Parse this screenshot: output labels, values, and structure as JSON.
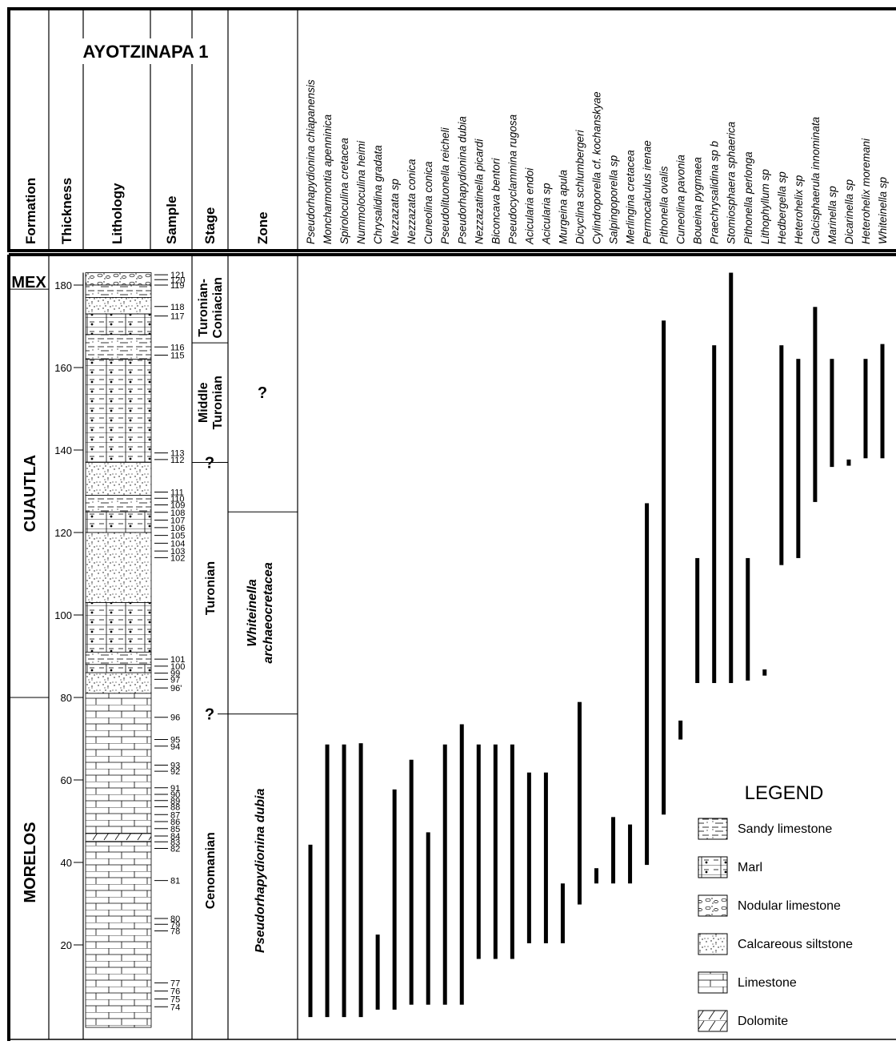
{
  "title": "AYOTZINAPA 1",
  "columns": {
    "formation": "Formation",
    "thickness": "Thickness",
    "lithology": "Lithology",
    "sample": "Sample",
    "stage": "Stage",
    "zone": "Zone"
  },
  "formations": [
    {
      "name": "MEX",
      "from": 179,
      "to": 183
    },
    {
      "name": "CUAUTLA",
      "from": 80,
      "to": 179
    },
    {
      "name": "MORELOS",
      "from": 0,
      "to": 80
    }
  ],
  "stages": [
    {
      "name": "Turonian-Coniacian",
      "lines": [
        "Turonian-",
        "Coniacian"
      ],
      "from": 166,
      "to": 183
    },
    {
      "name": "Middle Turonian",
      "lines": [
        "Middle",
        "Turonian"
      ],
      "from": 137,
      "to": 166
    },
    {
      "name": "Turonian",
      "lines": [
        "Turonian"
      ],
      "from": 76,
      "to": 137
    },
    {
      "name": "Cenomanian",
      "lines": [
        "Cenomanian"
      ],
      "from": 0,
      "to": 76
    }
  ],
  "stage_uncertain_marks": [
    {
      "label": "?",
      "depth": 137
    },
    {
      "label": "?",
      "depth": 76
    }
  ],
  "zones": [
    {
      "name": "?",
      "lines": [
        "?"
      ],
      "italic": false,
      "from": 125,
      "to": 183
    },
    {
      "name": "Whiteinella archaeocretacea",
      "lines": [
        "Whiteinella",
        "archaeocretacea"
      ],
      "italic": true,
      "from": 76,
      "to": 125
    },
    {
      "name": "Pseudorhapydionina dubia",
      "lines": [
        "Pseudorhapydionina dubia"
      ],
      "italic": true,
      "from": 0,
      "to": 76
    }
  ],
  "samples": [
    {
      "label": "121",
      "depth": 182.5
    },
    {
      "label": "120",
      "depth": 181.3
    },
    {
      "label": "119",
      "depth": 180.0
    },
    {
      "label": "118",
      "depth": 174.8
    },
    {
      "label": "117",
      "depth": 172.5
    },
    {
      "label": "116",
      "depth": 165.0
    },
    {
      "label": "115",
      "depth": 163.0
    },
    {
      "label": "113",
      "depth": 139.3
    },
    {
      "label": "112",
      "depth": 137.7
    },
    {
      "label": "111",
      "depth": 129.8
    },
    {
      "label": "110",
      "depth": 128.3
    },
    {
      "label": "109",
      "depth": 126.7
    },
    {
      "label": "108",
      "depth": 124.9
    },
    {
      "label": "107",
      "depth": 123.0
    },
    {
      "label": "106",
      "depth": 121.2
    },
    {
      "label": "105",
      "depth": 119.3
    },
    {
      "label": "104",
      "depth": 117.4
    },
    {
      "label": "103",
      "depth": 115.5
    },
    {
      "label": "102",
      "depth": 113.9
    },
    {
      "label": "101",
      "depth": 89.3
    },
    {
      "label": "100",
      "depth": 87.6
    },
    {
      "label": "99",
      "depth": 85.9
    },
    {
      "label": "97",
      "depth": 84.4
    },
    {
      "label": "96'",
      "depth": 82.3
    },
    {
      "label": "96",
      "depth": 75.2
    },
    {
      "label": "95",
      "depth": 69.8
    },
    {
      "label": "94",
      "depth": 68.2
    },
    {
      "label": "93",
      "depth": 63.6
    },
    {
      "label": "92",
      "depth": 62.1
    },
    {
      "label": "91",
      "depth": 58.1
    },
    {
      "label": "90",
      "depth": 56.5
    },
    {
      "label": "89",
      "depth": 55.0
    },
    {
      "label": "88",
      "depth": 53.5
    },
    {
      "label": "87",
      "depth": 51.6
    },
    {
      "label": "86",
      "depth": 49.9
    },
    {
      "label": "85",
      "depth": 48.2
    },
    {
      "label": "84",
      "depth": 46.4
    },
    {
      "label": "83",
      "depth": 45.0
    },
    {
      "label": "82",
      "depth": 43.4
    },
    {
      "label": "81",
      "depth": 35.6
    },
    {
      "label": "80",
      "depth": 26.4
    },
    {
      "label": "79",
      "depth": 25.0
    },
    {
      "label": "78",
      "depth": 23.4
    },
    {
      "label": "77",
      "depth": 10.8
    },
    {
      "label": "76",
      "depth": 8.8
    },
    {
      "label": "75",
      "depth": 6.9
    },
    {
      "label": "74",
      "depth": 5.0
    }
  ],
  "lithology": [
    {
      "type": "nodular",
      "from": 180,
      "to": 183
    },
    {
      "type": "sandy",
      "from": 177,
      "to": 180
    },
    {
      "type": "siltstone",
      "from": 173,
      "to": 177
    },
    {
      "type": "marl",
      "from": 168,
      "to": 173
    },
    {
      "type": "sandy",
      "from": 162,
      "to": 168
    },
    {
      "type": "marl",
      "from": 137,
      "to": 162
    },
    {
      "type": "siltstone",
      "from": 129,
      "to": 137
    },
    {
      "type": "sandy",
      "from": 125,
      "to": 129
    },
    {
      "type": "marl",
      "from": 120,
      "to": 125
    },
    {
      "type": "siltstone",
      "from": 103,
      "to": 120
    },
    {
      "type": "marl",
      "from": 91,
      "to": 103
    },
    {
      "type": "sandy",
      "from": 88,
      "to": 91
    },
    {
      "type": "marl",
      "from": 86,
      "to": 88
    },
    {
      "type": "siltstone",
      "from": 81,
      "to": 86
    },
    {
      "type": "limestone",
      "from": 47,
      "to": 81
    },
    {
      "type": "dolomite",
      "from": 45,
      "to": 47
    },
    {
      "type": "limestone",
      "from": 0,
      "to": 45
    }
  ],
  "legend": {
    "title": "LEGEND",
    "items": [
      {
        "type": "sandy",
        "label": "Sandy limestone"
      },
      {
        "type": "marl",
        "label": "Marl"
      },
      {
        "type": "nodular",
        "label": "Nodular limestone"
      },
      {
        "type": "siltstone",
        "label": "Calcareous siltstone"
      },
      {
        "type": "limestone",
        "label": "Limestone"
      },
      {
        "type": "dolomite",
        "label": "Dolomite"
      }
    ]
  },
  "chart_data": {
    "type": "range-bar",
    "title": "AYOTZINAPA 1",
    "ylabel": "Thickness",
    "yunit": "m",
    "ylim": [
      0,
      183
    ],
    "yticks": [
      20,
      40,
      60,
      80,
      100,
      120,
      140,
      160,
      180
    ],
    "series": [
      {
        "name": "Pseudorhapydionina chiapanensis",
        "from": 2.5,
        "to": 44.3
      },
      {
        "name": "Moncharmontia apenninica",
        "from": 2.5,
        "to": 68.6
      },
      {
        "name": "Spiroloculina cretacea",
        "from": 2.5,
        "to": 68.6
      },
      {
        "name": "Nummoloculina heimi",
        "from": 2.5,
        "to": 68.9
      },
      {
        "name": "Chrysalidina gradata",
        "from": 4.3,
        "to": 22.5
      },
      {
        "name": "Nezzazata sp",
        "from": 4.3,
        "to": 57.7
      },
      {
        "name": "Nezzazata conica",
        "from": 5.5,
        "to": 64.9
      },
      {
        "name": "Cuneolina conica",
        "from": 5.5,
        "to": 47.3
      },
      {
        "name": "Pseudolituonella reicheli",
        "from": 5.5,
        "to": 68.6
      },
      {
        "name": "Pseudorhapydionina dubia",
        "from": 5.5,
        "to": 73.5
      },
      {
        "name": "Nezzazatinella picardi",
        "from": 16.6,
        "to": 68.6
      },
      {
        "name": "Biconcava bentori",
        "from": 16.6,
        "to": 68.6
      },
      {
        "name": "Pseudocyclammina rugosa",
        "from": 16.6,
        "to": 68.6
      },
      {
        "name": "Acicularia endoi",
        "from": 20.4,
        "to": 61.8
      },
      {
        "name": "Acicularia sp",
        "from": 20.4,
        "to": 61.8
      },
      {
        "name": "Murgeina apula",
        "from": 20.4,
        "to": 34.9
      },
      {
        "name": "Dicyclina schlumbergeri",
        "from": 29.8,
        "to": 78.9
      },
      {
        "name": "Cylindroporella cf. kochanskyae",
        "from": 34.9,
        "to": 38.6
      },
      {
        "name": "Salpingoporella sp",
        "from": 34.9,
        "to": 51.0
      },
      {
        "name": "Merlingina cretacea",
        "from": 34.9,
        "to": 49.2
      },
      {
        "name": "Permocalculus irenae",
        "from": 39.4,
        "to": 127.1
      },
      {
        "name": "Pithonella ovalis",
        "from": 51.6,
        "to": 171.4
      },
      {
        "name": "Cuneolina pavonia",
        "from": 69.8,
        "to": 74.4
      },
      {
        "name": "Boueina pygmaea",
        "from": 83.5,
        "to": 113.8
      },
      {
        "name": "Praechrysalidina sp b",
        "from": 83.5,
        "to": 165.4
      },
      {
        "name": "Stomiosphaera sphaerica",
        "from": 83.5,
        "to": 183.0
      },
      {
        "name": "Pithonella perlonga",
        "from": 84.1,
        "to": 113.8
      },
      {
        "name": "Lithophyllum sp",
        "from": 85.3,
        "to": 86.8
      },
      {
        "name": "Hedbergella sp",
        "from": 112.1,
        "to": 165.4
      },
      {
        "name": "Heterohelix sp",
        "from": 113.8,
        "to": 162.1
      },
      {
        "name": "Calcisphaerula innominata",
        "from": 127.4,
        "to": 174.7
      },
      {
        "name": "Marinella sp",
        "from": 135.9,
        "to": 162.1
      },
      {
        "name": "Dicarinella sp",
        "from": 136.2,
        "to": 137.7
      },
      {
        "name": "Heterohelix moremani",
        "from": 138.0,
        "to": 162.1
      },
      {
        "name": "Whiteinella sp",
        "from": 138.0,
        "to": 165.7
      }
    ]
  }
}
